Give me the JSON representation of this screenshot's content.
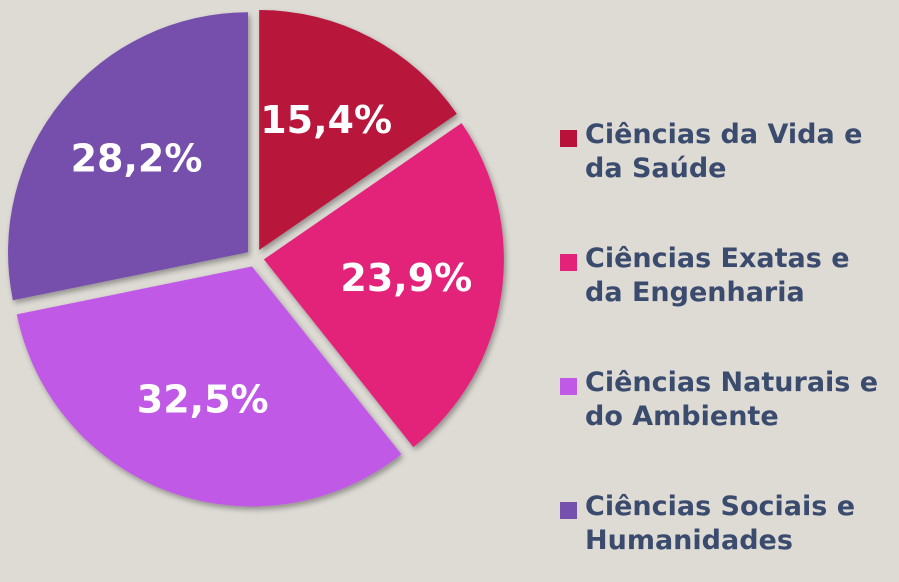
{
  "chart_data": {
    "type": "pie",
    "categories": [
      "Ciências da Vida e da Saúde",
      "Ciências Exatas e da Engenharia",
      "Ciências Naturais e do Ambiente",
      "Ciências Sociais e Humanidades"
    ],
    "values": [
      15.4,
      23.9,
      32.5,
      28.2
    ],
    "value_labels": [
      "15,4%",
      "23,9%",
      "32,5%",
      "28,2%"
    ],
    "colors": [
      "#b8123a",
      "#e3237a",
      "#c05ae6",
      "#7650ad"
    ],
    "legend": "right"
  }
}
